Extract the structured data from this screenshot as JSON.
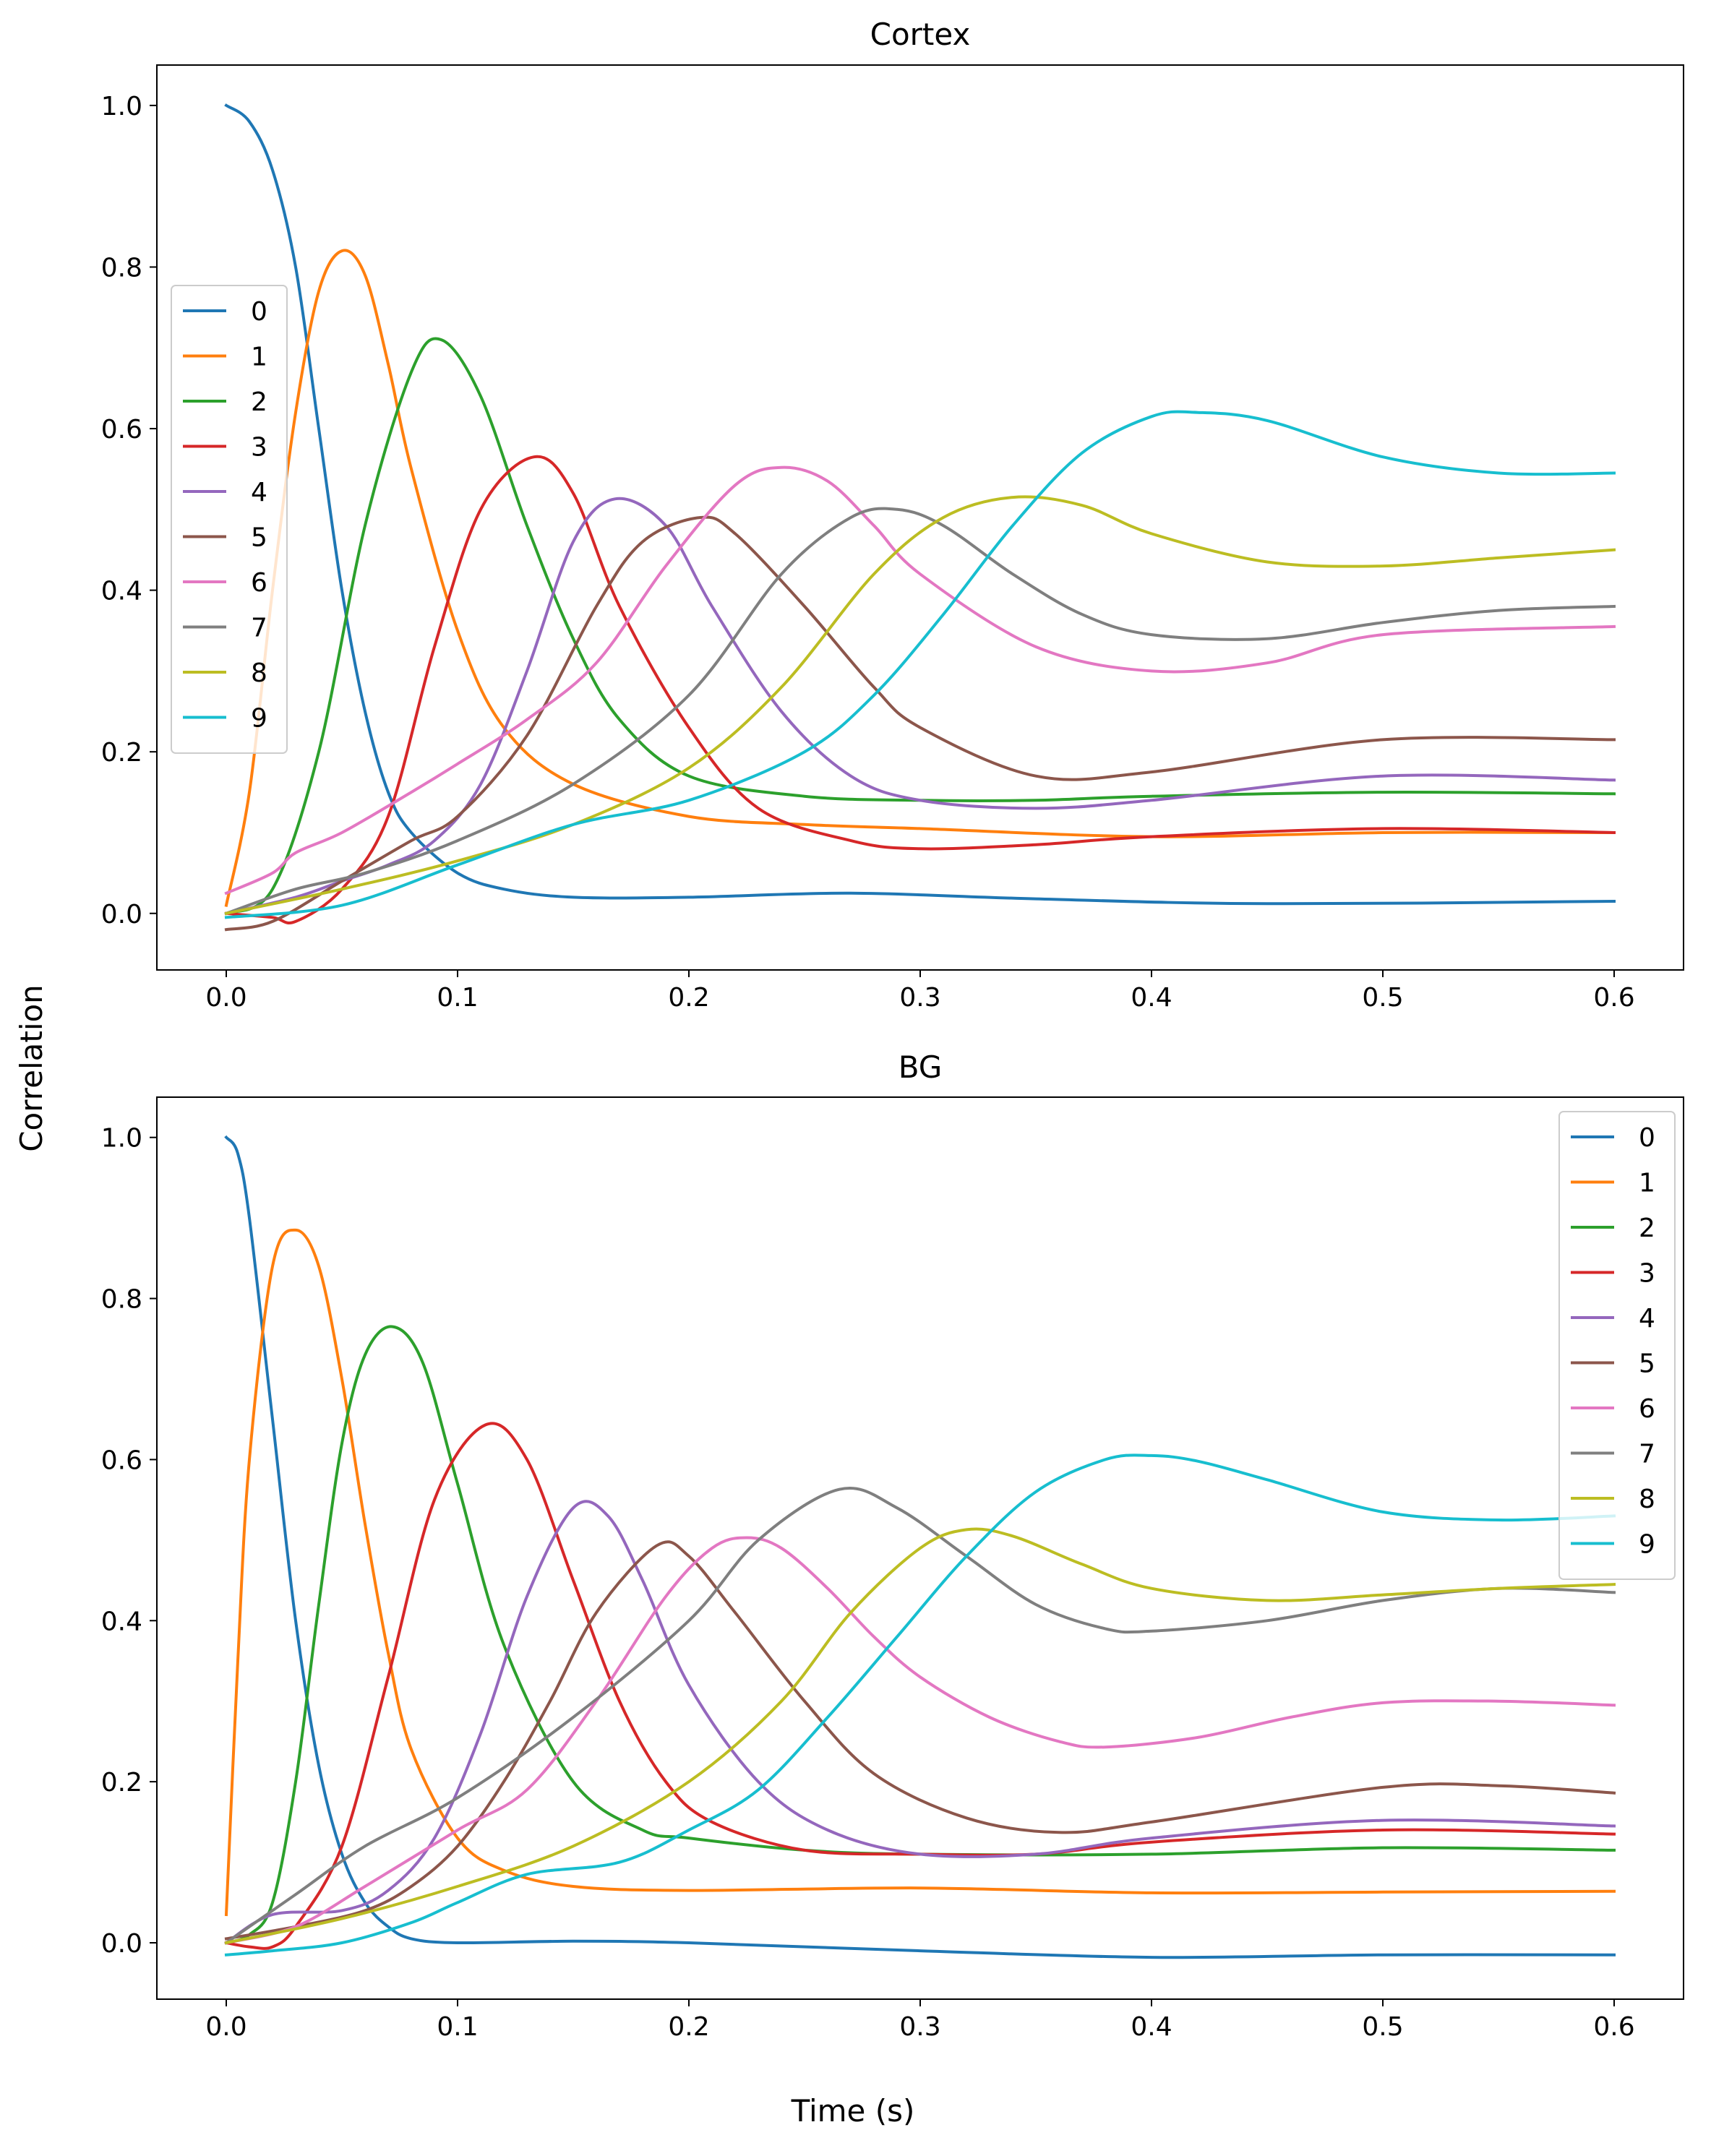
{
  "figure": {
    "xlabel": "Time (s)",
    "ylabel": "Correlation"
  },
  "chart_data": [
    {
      "type": "line",
      "title": "Cortex",
      "xlim": [
        -0.03,
        0.63
      ],
      "ylim": [
        -0.07,
        1.05
      ],
      "xticks": [
        "0.0",
        "0.1",
        "0.2",
        "0.3",
        "0.4",
        "0.5",
        "0.6"
      ],
      "yticks": [
        "0.0",
        "0.2",
        "0.4",
        "0.6",
        "0.8",
        "1.0"
      ],
      "grid": false,
      "legend_position": "upper-left",
      "series": [
        {
          "name": "0",
          "color": "#1f77b4",
          "x": [
            0,
            0.01,
            0.02,
            0.03,
            0.04,
            0.05,
            0.06,
            0.07,
            0.08,
            0.1,
            0.12,
            0.15,
            0.2,
            0.27,
            0.35,
            0.45,
            0.6
          ],
          "y": [
            1.0,
            0.98,
            0.92,
            0.8,
            0.6,
            0.4,
            0.25,
            0.15,
            0.1,
            0.05,
            0.03,
            0.02,
            0.02,
            0.025,
            0.018,
            0.012,
            0.015
          ]
        },
        {
          "name": "1",
          "color": "#ff7f0e",
          "x": [
            0,
            0.01,
            0.02,
            0.03,
            0.04,
            0.05,
            0.06,
            0.07,
            0.08,
            0.1,
            0.12,
            0.15,
            0.2,
            0.25,
            0.3,
            0.4,
            0.5,
            0.6
          ],
          "y": [
            0.01,
            0.15,
            0.4,
            0.62,
            0.77,
            0.82,
            0.79,
            0.68,
            0.55,
            0.35,
            0.23,
            0.16,
            0.12,
            0.11,
            0.105,
            0.095,
            0.1,
            0.1
          ]
        },
        {
          "name": "2",
          "color": "#2ca02c",
          "x": [
            0,
            0.02,
            0.04,
            0.06,
            0.08,
            0.093,
            0.11,
            0.13,
            0.15,
            0.17,
            0.2,
            0.25,
            0.3,
            0.35,
            0.4,
            0.5,
            0.6
          ],
          "y": [
            0.0,
            0.03,
            0.2,
            0.48,
            0.67,
            0.71,
            0.64,
            0.48,
            0.34,
            0.24,
            0.17,
            0.145,
            0.14,
            0.14,
            0.145,
            0.15,
            0.148
          ]
        },
        {
          "name": "3",
          "color": "#d62728",
          "x": [
            0,
            0.02,
            0.03,
            0.05,
            0.07,
            0.09,
            0.11,
            0.133,
            0.15,
            0.17,
            0.2,
            0.23,
            0.27,
            0.3,
            0.35,
            0.4,
            0.5,
            0.6
          ],
          "y": [
            0.0,
            -0.005,
            -0.01,
            0.03,
            0.12,
            0.33,
            0.5,
            0.565,
            0.52,
            0.38,
            0.23,
            0.13,
            0.09,
            0.08,
            0.085,
            0.095,
            0.105,
            0.1
          ]
        },
        {
          "name": "4",
          "color": "#9467bd",
          "x": [
            0,
            0.03,
            0.05,
            0.07,
            0.09,
            0.11,
            0.13,
            0.15,
            0.168,
            0.19,
            0.21,
            0.24,
            0.27,
            0.3,
            0.35,
            0.4,
            0.5,
            0.6
          ],
          "y": [
            0.0,
            0.02,
            0.04,
            0.06,
            0.09,
            0.16,
            0.3,
            0.46,
            0.513,
            0.48,
            0.38,
            0.25,
            0.17,
            0.14,
            0.13,
            0.14,
            0.17,
            0.165
          ]
        },
        {
          "name": "5",
          "color": "#8c564b",
          "x": [
            0,
            0.02,
            0.05,
            0.08,
            0.1,
            0.13,
            0.16,
            0.18,
            0.205,
            0.22,
            0.25,
            0.28,
            0.3,
            0.35,
            0.4,
            0.5,
            0.6
          ],
          "y": [
            -0.02,
            -0.01,
            0.04,
            0.09,
            0.12,
            0.22,
            0.38,
            0.46,
            0.49,
            0.47,
            0.38,
            0.28,
            0.23,
            0.17,
            0.175,
            0.215,
            0.215
          ]
        },
        {
          "name": "6",
          "color": "#e377c2",
          "x": [
            0,
            0.02,
            0.03,
            0.05,
            0.08,
            0.1,
            0.13,
            0.16,
            0.19,
            0.22,
            0.24,
            0.26,
            0.28,
            0.3,
            0.35,
            0.4,
            0.45,
            0.5,
            0.6
          ],
          "y": [
            0.025,
            0.05,
            0.075,
            0.1,
            0.15,
            0.185,
            0.24,
            0.31,
            0.43,
            0.53,
            0.552,
            0.535,
            0.48,
            0.42,
            0.33,
            0.3,
            0.31,
            0.345,
            0.355
          ]
        },
        {
          "name": "7",
          "color": "#7f7f7f",
          "x": [
            0,
            0.03,
            0.06,
            0.1,
            0.15,
            0.2,
            0.24,
            0.27,
            0.29,
            0.31,
            0.34,
            0.37,
            0.4,
            0.45,
            0.5,
            0.55,
            0.6
          ],
          "y": [
            0.0,
            0.03,
            0.05,
            0.09,
            0.16,
            0.27,
            0.42,
            0.49,
            0.5,
            0.48,
            0.42,
            0.37,
            0.345,
            0.34,
            0.36,
            0.375,
            0.38
          ]
        },
        {
          "name": "8",
          "color": "#bcbd22",
          "x": [
            0,
            0.05,
            0.1,
            0.15,
            0.2,
            0.24,
            0.28,
            0.31,
            0.34,
            0.37,
            0.4,
            0.45,
            0.5,
            0.55,
            0.6
          ],
          "y": [
            0.0,
            0.03,
            0.065,
            0.11,
            0.18,
            0.28,
            0.42,
            0.49,
            0.515,
            0.505,
            0.47,
            0.435,
            0.43,
            0.44,
            0.45
          ]
        },
        {
          "name": "9",
          "color": "#17becf",
          "x": [
            0,
            0.05,
            0.1,
            0.15,
            0.2,
            0.25,
            0.28,
            0.31,
            0.34,
            0.37,
            0.4,
            0.42,
            0.45,
            0.5,
            0.55,
            0.6
          ],
          "y": [
            -0.005,
            0.01,
            0.06,
            0.11,
            0.14,
            0.2,
            0.27,
            0.37,
            0.48,
            0.57,
            0.615,
            0.62,
            0.61,
            0.565,
            0.545,
            0.545
          ]
        }
      ]
    },
    {
      "type": "line",
      "title": "BG",
      "xlim": [
        -0.03,
        0.63
      ],
      "ylim": [
        -0.07,
        1.05
      ],
      "xticks": [
        "0.0",
        "0.1",
        "0.2",
        "0.3",
        "0.4",
        "0.5",
        "0.6"
      ],
      "yticks": [
        "0.0",
        "0.2",
        "0.4",
        "0.6",
        "0.8",
        "1.0"
      ],
      "grid": false,
      "legend_position": "upper-right",
      "series": [
        {
          "name": "0",
          "color": "#1f77b4",
          "x": [
            0,
            0.005,
            0.01,
            0.02,
            0.03,
            0.04,
            0.05,
            0.06,
            0.07,
            0.08,
            0.1,
            0.15,
            0.2,
            0.3,
            0.4,
            0.5,
            0.6
          ],
          "y": [
            1.0,
            0.98,
            0.9,
            0.65,
            0.4,
            0.22,
            0.11,
            0.05,
            0.02,
            0.005,
            0.0,
            0.002,
            0.0,
            -0.01,
            -0.018,
            -0.015,
            -0.015
          ]
        },
        {
          "name": "1",
          "color": "#ff7f0e",
          "x": [
            0,
            0.005,
            0.01,
            0.02,
            0.03,
            0.04,
            0.05,
            0.06,
            0.07,
            0.08,
            0.1,
            0.12,
            0.15,
            0.2,
            0.3,
            0.4,
            0.5,
            0.6
          ],
          "y": [
            0.035,
            0.35,
            0.6,
            0.84,
            0.885,
            0.84,
            0.7,
            0.52,
            0.36,
            0.24,
            0.13,
            0.09,
            0.07,
            0.065,
            0.068,
            0.062,
            0.063,
            0.064
          ]
        },
        {
          "name": "2",
          "color": "#2ca02c",
          "x": [
            0,
            0.01,
            0.02,
            0.03,
            0.04,
            0.05,
            0.06,
            0.072,
            0.085,
            0.1,
            0.12,
            0.15,
            0.18,
            0.2,
            0.25,
            0.3,
            0.4,
            0.5,
            0.6
          ],
          "y": [
            0.0,
            0.01,
            0.05,
            0.2,
            0.42,
            0.62,
            0.73,
            0.765,
            0.72,
            0.57,
            0.37,
            0.2,
            0.14,
            0.13,
            0.115,
            0.11,
            0.11,
            0.118,
            0.115
          ]
        },
        {
          "name": "3",
          "color": "#d62728",
          "x": [
            0,
            0.01,
            0.02,
            0.03,
            0.05,
            0.07,
            0.09,
            0.112,
            0.13,
            0.15,
            0.17,
            0.19,
            0.21,
            0.25,
            0.3,
            0.35,
            0.4,
            0.5,
            0.6
          ],
          "y": [
            0.0,
            -0.005,
            -0.005,
            0.02,
            0.12,
            0.33,
            0.55,
            0.643,
            0.6,
            0.45,
            0.3,
            0.2,
            0.15,
            0.115,
            0.11,
            0.11,
            0.125,
            0.14,
            0.135
          ]
        },
        {
          "name": "4",
          "color": "#9467bd",
          "x": [
            0,
            0.02,
            0.05,
            0.07,
            0.09,
            0.11,
            0.13,
            0.15,
            0.165,
            0.18,
            0.2,
            0.23,
            0.26,
            0.3,
            0.35,
            0.4,
            0.5,
            0.6
          ],
          "y": [
            0.0,
            0.035,
            0.04,
            0.065,
            0.13,
            0.26,
            0.43,
            0.54,
            0.53,
            0.45,
            0.32,
            0.2,
            0.14,
            0.11,
            0.11,
            0.13,
            0.152,
            0.145
          ]
        },
        {
          "name": "5",
          "color": "#8c564b",
          "x": [
            0,
            0.03,
            0.06,
            0.08,
            0.1,
            0.12,
            0.14,
            0.16,
            0.186,
            0.2,
            0.22,
            0.25,
            0.28,
            0.32,
            0.36,
            0.4,
            0.5,
            0.55,
            0.6
          ],
          "y": [
            0.005,
            0.02,
            0.04,
            0.07,
            0.12,
            0.2,
            0.3,
            0.41,
            0.493,
            0.48,
            0.41,
            0.3,
            0.21,
            0.155,
            0.137,
            0.15,
            0.193,
            0.195,
            0.186
          ]
        },
        {
          "name": "6",
          "color": "#e377c2",
          "x": [
            0,
            0.03,
            0.06,
            0.1,
            0.13,
            0.16,
            0.19,
            0.21,
            0.225,
            0.24,
            0.26,
            0.28,
            0.3,
            0.33,
            0.36,
            0.38,
            0.42,
            0.46,
            0.5,
            0.55,
            0.6
          ],
          "y": [
            0.0,
            0.02,
            0.07,
            0.14,
            0.19,
            0.3,
            0.43,
            0.49,
            0.503,
            0.49,
            0.44,
            0.38,
            0.33,
            0.28,
            0.25,
            0.243,
            0.255,
            0.28,
            0.298,
            0.3,
            0.295
          ]
        },
        {
          "name": "7",
          "color": "#7f7f7f",
          "x": [
            0,
            0.03,
            0.06,
            0.1,
            0.15,
            0.2,
            0.23,
            0.265,
            0.29,
            0.32,
            0.35,
            0.38,
            0.4,
            0.45,
            0.5,
            0.55,
            0.6
          ],
          "y": [
            0.0,
            0.06,
            0.12,
            0.18,
            0.28,
            0.4,
            0.5,
            0.563,
            0.54,
            0.48,
            0.42,
            0.39,
            0.387,
            0.4,
            0.425,
            0.44,
            0.435
          ]
        },
        {
          "name": "8",
          "color": "#bcbd22",
          "x": [
            0,
            0.05,
            0.1,
            0.15,
            0.2,
            0.24,
            0.27,
            0.3,
            0.32,
            0.34,
            0.37,
            0.4,
            0.45,
            0.5,
            0.55,
            0.6
          ],
          "y": [
            0.0,
            0.03,
            0.07,
            0.12,
            0.2,
            0.3,
            0.41,
            0.49,
            0.513,
            0.505,
            0.47,
            0.44,
            0.425,
            0.432,
            0.44,
            0.445
          ]
        },
        {
          "name": "9",
          "color": "#17becf",
          "x": [
            0,
            0.02,
            0.05,
            0.08,
            0.1,
            0.13,
            0.17,
            0.2,
            0.23,
            0.26,
            0.29,
            0.32,
            0.35,
            0.38,
            0.4,
            0.42,
            0.45,
            0.5,
            0.55,
            0.6
          ],
          "y": [
            -0.015,
            -0.01,
            0.0,
            0.025,
            0.05,
            0.085,
            0.1,
            0.14,
            0.19,
            0.28,
            0.38,
            0.48,
            0.56,
            0.6,
            0.605,
            0.598,
            0.575,
            0.535,
            0.525,
            0.53
          ]
        }
      ]
    }
  ]
}
